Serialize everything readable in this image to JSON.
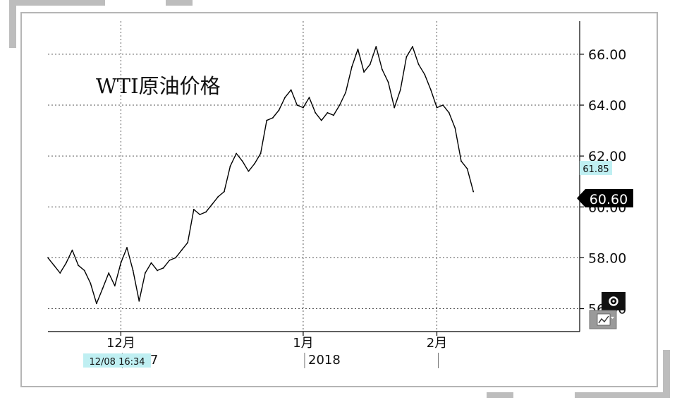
{
  "chart_data": {
    "type": "line",
    "title": "WTI原油价格",
    "xlabel": "",
    "ylabel": "",
    "ylim": [
      55.1,
      67.3
    ],
    "y_ticks": [
      "56.00",
      "58.00",
      "60.00",
      "62.00",
      "64.00",
      "66.00"
    ],
    "x_tick_labels": [
      {
        "label": "12月",
        "x": 12
      },
      {
        "label": "1月",
        "x": 42
      },
      {
        "label": "2月",
        "x": 64
      }
    ],
    "x_period_labels": [
      {
        "label": "2017",
        "x": 12
      },
      {
        "label": "2018",
        "x": 42
      }
    ],
    "last_price": "60.60",
    "reference_price": "61.85",
    "timestamp_label": "12/08 16:34",
    "grid": true,
    "series": [
      {
        "values": [
          [
            0,
            58.0
          ],
          [
            1,
            57.7
          ],
          [
            2,
            57.4
          ],
          [
            3,
            57.8
          ],
          [
            4,
            58.3
          ],
          [
            5,
            57.7
          ],
          [
            6,
            57.5
          ],
          [
            7,
            57.0
          ],
          [
            8,
            56.2
          ],
          [
            9,
            56.8
          ],
          [
            10,
            57.4
          ],
          [
            11,
            56.9
          ],
          [
            12,
            57.8
          ],
          [
            13,
            58.4
          ],
          [
            14,
            57.5
          ],
          [
            15,
            56.3
          ],
          [
            16,
            57.4
          ],
          [
            17,
            57.8
          ],
          [
            18,
            57.5
          ],
          [
            19,
            57.6
          ],
          [
            20,
            57.9
          ],
          [
            21,
            58.0
          ],
          [
            22,
            58.3
          ],
          [
            23,
            58.6
          ],
          [
            24,
            59.9
          ],
          [
            25,
            59.7
          ],
          [
            26,
            59.8
          ],
          [
            27,
            60.1
          ],
          [
            28,
            60.4
          ],
          [
            29,
            60.6
          ],
          [
            30,
            61.6
          ],
          [
            31,
            62.1
          ],
          [
            32,
            61.8
          ],
          [
            33,
            61.4
          ],
          [
            34,
            61.7
          ],
          [
            35,
            62.1
          ],
          [
            36,
            63.4
          ],
          [
            37,
            63.5
          ],
          [
            38,
            63.8
          ],
          [
            39,
            64.3
          ],
          [
            40,
            64.6
          ],
          [
            41,
            64.0
          ],
          [
            42,
            63.9
          ],
          [
            43,
            64.3
          ],
          [
            44,
            63.7
          ],
          [
            45,
            63.4
          ],
          [
            46,
            63.7
          ],
          [
            47,
            63.6
          ],
          [
            48,
            64.0
          ],
          [
            49,
            64.5
          ],
          [
            50,
            65.5
          ],
          [
            51,
            66.2
          ],
          [
            52,
            65.3
          ],
          [
            53,
            65.6
          ],
          [
            54,
            66.3
          ],
          [
            55,
            65.4
          ],
          [
            56,
            64.9
          ],
          [
            57,
            63.9
          ],
          [
            58,
            64.6
          ],
          [
            59,
            65.9
          ],
          [
            60,
            66.3
          ],
          [
            61,
            65.6
          ],
          [
            62,
            65.2
          ],
          [
            63,
            64.6
          ],
          [
            64,
            63.9
          ],
          [
            65,
            64.0
          ],
          [
            66,
            63.7
          ],
          [
            67,
            63.1
          ],
          [
            68,
            61.8
          ],
          [
            69,
            61.5
          ],
          [
            70,
            60.6
          ]
        ]
      }
    ]
  }
}
